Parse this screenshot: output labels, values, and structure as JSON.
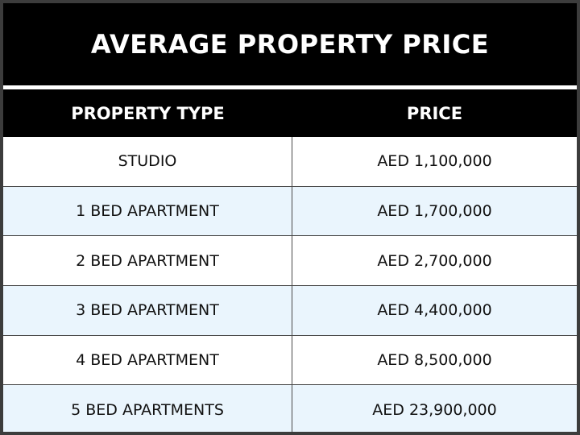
{
  "title": "AVERAGE PROPERTY PRICE",
  "headers": {
    "property_type": "PROPERTY TYPE",
    "price": "PRICE"
  },
  "rows": [
    {
      "type": "STUDIO",
      "price": "AED 1,100,000"
    },
    {
      "type": "1 BED APARTMENT",
      "price": "AED 1,700,000"
    },
    {
      "type": "2  BED APARTMENT",
      "price": "AED 2,700,000"
    },
    {
      "type": "3  BED APARTMENT",
      "price": "AED 4,400,000"
    },
    {
      "type": "4  BED APARTMENT",
      "price": "AED 8,500,000"
    },
    {
      "type": "5 BED APARTMENTS",
      "price": "AED 23,900,000"
    }
  ],
  "colors": {
    "header_bg": "#000000",
    "header_text": "#ffffff",
    "row_alt_bg": "#eaf5fd",
    "row_bg": "#ffffff"
  }
}
